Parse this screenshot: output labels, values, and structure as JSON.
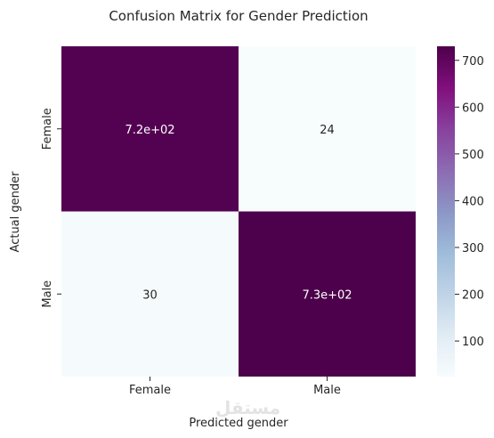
{
  "chart_data": {
    "type": "heatmap",
    "title": "Confusion Matrix for Gender Prediction",
    "xlabel": "Predicted gender",
    "ylabel": "Actual gender",
    "x_categories": [
      "Female",
      "Male"
    ],
    "y_categories": [
      "Female",
      "Male"
    ],
    "values": [
      [
        720,
        24
      ],
      [
        30,
        730
      ]
    ],
    "annotations": [
      [
        "7.2e+02",
        "24"
      ],
      [
        "30",
        "7.3e+02"
      ]
    ],
    "colorbar": {
      "range": [
        24,
        730
      ],
      "ticks": [
        100,
        200,
        300,
        400,
        500,
        600,
        700
      ],
      "colormap": "BuPu",
      "low_color": "#f7fcfd",
      "high_color": "#4d004b"
    },
    "grid": false
  }
}
